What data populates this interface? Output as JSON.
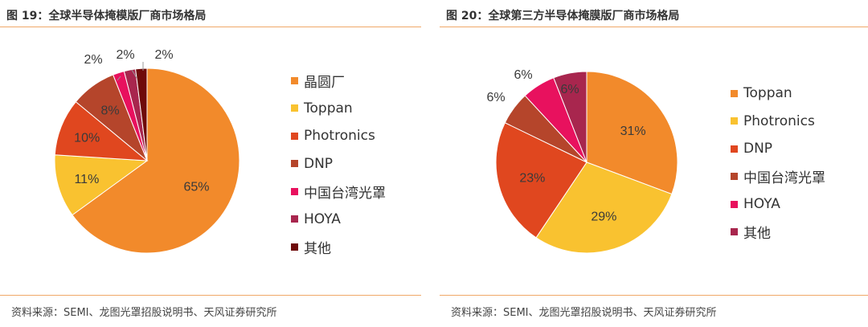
{
  "figures": [
    {
      "title": "图 19：全球半导体掩模版厂商市场格局",
      "source": "资料来源：SEMI、龙图光罩招股说明书、天风证券研究所"
    },
    {
      "title": "图 20：全球第三方半导体掩膜版厂商市场格局",
      "source": "资料来源：SEMI、龙图光罩招股说明书、天风证券研究所"
    }
  ],
  "chart_data": [
    {
      "type": "pie",
      "title": "全球半导体掩模版厂商市场格局",
      "categories": [
        "晶圆厂",
        "Toppan",
        "Photronics",
        "DNP",
        "中国台湾光罩",
        "HOYA",
        "其他"
      ],
      "values": [
        65,
        11,
        10,
        8,
        2,
        2,
        2
      ],
      "labels": [
        "65%",
        "11%",
        "10%",
        "8%",
        "2%",
        "2%",
        "2%"
      ],
      "colors": [
        "#F28A2B",
        "#F9C230",
        "#E0471F",
        "#B5452B",
        "#E8115E",
        "#A8264E",
        "#6E0A0A"
      ],
      "legend_position": "right"
    },
    {
      "type": "pie",
      "title": "全球第三方半导体掩膜版厂商市场格局",
      "categories": [
        "Toppan",
        "Photronics",
        "DNP",
        "中国台湾光罩",
        "HOYA",
        "其他"
      ],
      "values": [
        31,
        29,
        23,
        6,
        6,
        6
      ],
      "labels": [
        "31%",
        "29%",
        "23%",
        "6%",
        "6%",
        "6%"
      ],
      "colors": [
        "#F28A2B",
        "#F9C230",
        "#E0471F",
        "#B5452B",
        "#E8115E",
        "#A8264E"
      ],
      "legend_position": "right"
    }
  ]
}
